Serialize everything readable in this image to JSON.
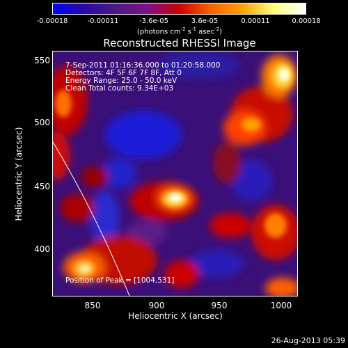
{
  "colorbar": {
    "ticks": [
      "-0.00018",
      "-0.00011",
      "-3.6e-05",
      "3.6e-05",
      "0.00011",
      "0.00018"
    ],
    "unit_main": "(photons cm",
    "unit_exp1": "-2",
    "unit_mid": " s",
    "unit_exp2": "-1",
    "unit_tail": " asec",
    "unit_exp3": "-2",
    "unit_close": ")",
    "colors": [
      "#0000ff",
      "#2a0aa0",
      "#4a1a88",
      "#80108a",
      "#cc0000",
      "#ff6000",
      "#ffa000",
      "#ffff80",
      "#ffffff"
    ]
  },
  "plot": {
    "title": "Reconstructed RHESSI Image",
    "x_axis": {
      "label": "Heliocentric X (arcsec)",
      "ticks": [
        "850",
        "900",
        "950",
        "1000"
      ],
      "tick_values": [
        850,
        900,
        950,
        1000
      ],
      "range": [
        816,
        1024
      ]
    },
    "y_axis": {
      "label": "Heliocentric Y (arcsec)",
      "ticks": [
        "400",
        "450",
        "500",
        "550"
      ],
      "tick_values": [
        400,
        450,
        500,
        550
      ],
      "range": [
        363,
        555
      ]
    },
    "info": {
      "time_range": "7-Sep-2011 01:16:36.000 to 01:20:58.000",
      "detectors": "Detectors: 4F 5F 6F 7F 8F, Att 0",
      "energy": "Energy Range: 25.0 - 50.0 keV",
      "clean": "Clean    Total counts: 9.34E+03",
      "peak": "Position of Peak = [1004,531]"
    }
  },
  "footer": {
    "timestamp": "26-Aug-2013 05:39"
  }
}
